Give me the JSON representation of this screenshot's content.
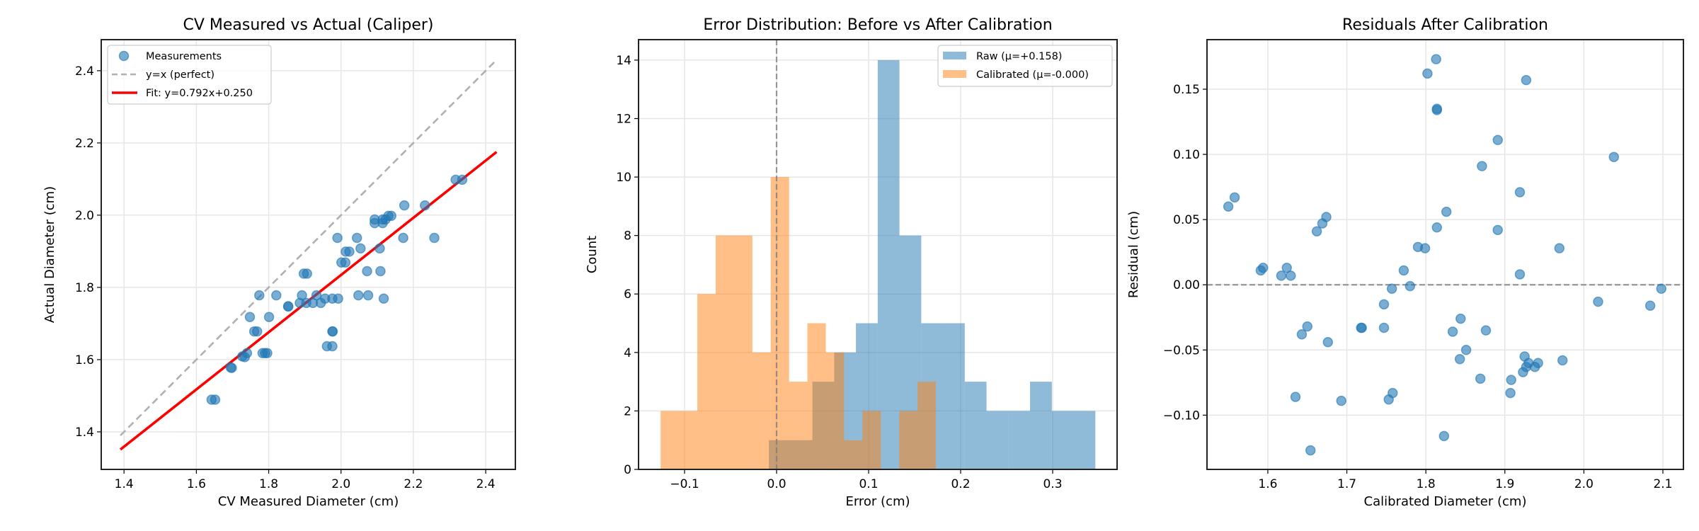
{
  "chart_data": [
    {
      "type": "scatter",
      "title": "CV Measured vs Actual (Caliper)",
      "xlabel": "CV Measured Diameter (cm)",
      "ylabel": "Actual Diameter (cm)",
      "xlim": [
        1.337,
        2.482
      ],
      "ylim": [
        1.296,
        2.486
      ],
      "grid": true,
      "legend_position": "top-left",
      "xticks": [
        1.4,
        1.6,
        1.8,
        2.0,
        2.2,
        2.4
      ],
      "xtick_labels": [
        "1.4",
        "1.6",
        "1.8",
        "2.0",
        "2.2",
        "2.4"
      ],
      "yticks": [
        1.4,
        1.6,
        1.8,
        2.0,
        2.2,
        2.4
      ],
      "ytick_labels": [
        "1.4",
        "1.6",
        "1.8",
        "2.0",
        "2.2",
        "2.4"
      ],
      "series": [
        {
          "name": "Measurements",
          "kind": "scatter",
          "color": "#1f77b4",
          "points": [
            [
              1.642,
              1.489
            ],
            [
              1.652,
              1.489
            ],
            [
              1.695,
              1.578
            ],
            [
              1.698,
              1.577
            ],
            [
              1.727,
              1.609
            ],
            [
              1.734,
              1.607
            ],
            [
              1.74,
              1.618
            ],
            [
              1.748,
              1.718
            ],
            [
              1.76,
              1.678
            ],
            [
              1.768,
              1.678
            ],
            [
              1.774,
              1.778
            ],
            [
              1.783,
              1.618
            ],
            [
              1.79,
              1.618
            ],
            [
              1.796,
              1.618
            ],
            [
              1.801,
              1.718
            ],
            [
              1.821,
              1.778
            ],
            [
              1.854,
              1.747
            ],
            [
              1.854,
              1.748
            ],
            [
              1.886,
              1.757
            ],
            [
              1.892,
              1.778
            ],
            [
              1.897,
              1.838
            ],
            [
              1.906,
              1.838
            ],
            [
              1.904,
              1.757
            ],
            [
              1.922,
              1.757
            ],
            [
              1.932,
              1.778
            ],
            [
              1.944,
              1.757
            ],
            [
              1.956,
              1.769
            ],
            [
              1.961,
              1.637
            ],
            [
              1.976,
              1.637
            ],
            [
              1.976,
              1.678
            ],
            [
              1.977,
              1.678
            ],
            [
              1.976,
              1.769
            ],
            [
              1.992,
              1.769
            ],
            [
              1.99,
              1.937
            ],
            [
              2.001,
              1.869
            ],
            [
              2.012,
              1.869
            ],
            [
              2.013,
              1.899
            ],
            [
              2.023,
              1.899
            ],
            [
              2.044,
              1.937
            ],
            [
              2.048,
              1.778
            ],
            [
              2.054,
              1.908
            ],
            [
              2.072,
              1.845
            ],
            [
              2.075,
              1.778
            ],
            [
              2.093,
              1.988
            ],
            [
              2.093,
              1.978
            ],
            [
              2.107,
              1.908
            ],
            [
              2.109,
              1.845
            ],
            [
              2.115,
              1.988
            ],
            [
              2.115,
              1.978
            ],
            [
              2.118,
              1.769
            ],
            [
              2.123,
              1.988
            ],
            [
              2.131,
              1.998
            ],
            [
              2.139,
              1.998
            ],
            [
              2.172,
              1.937
            ],
            [
              2.175,
              2.027
            ],
            [
              2.232,
              2.027
            ],
            [
              2.258,
              1.937
            ],
            [
              2.317,
              2.098
            ],
            [
              2.335,
              2.098
            ]
          ]
        },
        {
          "name": "y=x (perfect)",
          "kind": "line",
          "style": "dashed",
          "color": "#b0b0b0",
          "points": [
            [
              1.39,
              1.39
            ],
            [
              2.43,
              2.43
            ]
          ]
        },
        {
          "name": "Fit: y=0.792x+0.250",
          "kind": "line",
          "style": "solid",
          "color": "#ff0000",
          "slope": 0.792,
          "intercept": 0.25,
          "points": [
            [
              1.39,
              1.351
            ],
            [
              2.43,
              2.175
            ]
          ]
        }
      ]
    },
    {
      "type": "histogram",
      "title": "Error Distribution: Before vs After Calibration",
      "xlabel": "Error (cm)",
      "ylabel": "Count",
      "xlim": [
        -0.15,
        0.37
      ],
      "ylim": [
        0,
        14.7
      ],
      "grid": true,
      "legend_position": "top-right",
      "reference_line_x": 0,
      "xticks": [
        -0.1,
        0.0,
        0.1,
        0.2,
        0.3
      ],
      "xtick_labels": [
        "−0.1",
        "0.0",
        "0.1",
        "0.2",
        "0.3"
      ],
      "yticks": [
        0,
        2,
        4,
        6,
        8,
        10,
        12,
        14
      ],
      "ytick_labels": [
        "0",
        "2",
        "4",
        "6",
        "8",
        "10",
        "12",
        "14"
      ],
      "series": [
        {
          "name": "Raw (μ=+0.158)",
          "color": "#1f77b4",
          "bin_edges": [
            -0.0084,
            0.0153,
            0.0389,
            0.0626,
            0.0862,
            0.1099,
            0.1335,
            0.1572,
            0.1808,
            0.2045,
            0.2281,
            0.2518,
            0.2754,
            0.2991,
            0.3227,
            0.3464
          ],
          "counts": [
            1,
            1,
            3,
            4,
            5,
            14,
            8,
            5,
            5,
            3,
            2,
            2,
            3,
            2,
            2
          ]
        },
        {
          "name": "Calibrated (μ=-0.000)",
          "color": "#ff7f0e",
          "bin_edges": [
            -0.126,
            -0.1061,
            -0.0861,
            -0.0662,
            -0.0462,
            -0.0263,
            -0.0064,
            0.0136,
            0.0335,
            0.0535,
            0.0734,
            0.0933,
            0.1133,
            0.1332,
            0.1532,
            0.1731
          ],
          "counts": [
            2,
            2,
            6,
            8,
            8,
            4,
            10,
            3,
            5,
            4,
            1,
            2,
            0,
            2,
            3
          ]
        }
      ]
    },
    {
      "type": "scatter",
      "title": "Residuals After Calibration",
      "xlabel": "Calibrated Diameter (cm)",
      "ylabel": "Residual (cm)",
      "xlim": [
        1.523,
        2.126
      ],
      "ylim": [
        -0.1416,
        0.188
      ],
      "grid": true,
      "reference_line_y": 0,
      "xticks": [
        1.6,
        1.7,
        1.8,
        1.9,
        2.0,
        2.1
      ],
      "xtick_labels": [
        "1.6",
        "1.7",
        "1.8",
        "1.9",
        "2.0",
        "2.1"
      ],
      "yticks": [
        -0.1,
        -0.05,
        0.0,
        0.05,
        0.1,
        0.15
      ],
      "ytick_labels": [
        "−0.10",
        "−0.05",
        "0.00",
        "0.05",
        "0.10",
        "0.15"
      ],
      "series": [
        {
          "kind": "scatter",
          "color": "#1f77b4",
          "points": [
            [
              1.55,
              0.06
            ],
            [
              1.558,
              0.067
            ],
            [
              1.591,
              0.011
            ],
            [
              1.594,
              0.013
            ],
            [
              1.617,
              0.007
            ],
            [
              1.624,
              0.013
            ],
            [
              1.629,
              0.007
            ],
            [
              1.635,
              -0.086
            ],
            [
              1.643,
              -0.038
            ],
            [
              1.65,
              -0.032
            ],
            [
              1.654,
              -0.127
            ],
            [
              1.662,
              0.041
            ],
            [
              1.669,
              0.047
            ],
            [
              1.674,
              0.052
            ],
            [
              1.676,
              -0.044
            ],
            [
              1.693,
              -0.089
            ],
            [
              1.718,
              -0.033
            ],
            [
              1.719,
              -0.033
            ],
            [
              1.747,
              -0.015
            ],
            [
              1.747,
              -0.033
            ],
            [
              1.753,
              -0.088
            ],
            [
              1.757,
              -0.003
            ],
            [
              1.758,
              -0.083
            ],
            [
              1.772,
              0.011
            ],
            [
              1.78,
              -0.001
            ],
            [
              1.79,
              0.029
            ],
            [
              1.799,
              0.028
            ],
            [
              1.802,
              0.162
            ],
            [
              1.813,
              0.173
            ],
            [
              1.814,
              0.135
            ],
            [
              1.814,
              0.134
            ],
            [
              1.891,
              0.111
            ],
            [
              1.871,
              0.091
            ],
            [
              1.927,
              0.157
            ],
            [
              1.919,
              0.071
            ],
            [
              2.038,
              0.098
            ],
            [
              1.826,
              0.056
            ],
            [
              1.814,
              0.044
            ],
            [
              1.891,
              0.042
            ],
            [
              1.969,
              0.028
            ],
            [
              1.919,
              0.008
            ],
            [
              2.098,
              -0.003
            ],
            [
              2.018,
              -0.013
            ],
            [
              2.084,
              -0.016
            ],
            [
              1.844,
              -0.026
            ],
            [
              1.834,
              -0.036
            ],
            [
              1.876,
              -0.035
            ],
            [
              1.851,
              -0.05
            ],
            [
              1.843,
              -0.057
            ],
            [
              1.925,
              -0.055
            ],
            [
              1.973,
              -0.058
            ],
            [
              1.93,
              -0.06
            ],
            [
              1.942,
              -0.06
            ],
            [
              1.927,
              -0.063
            ],
            [
              1.938,
              -0.063
            ],
            [
              1.923,
              -0.067
            ],
            [
              1.869,
              -0.072
            ],
            [
              1.908,
              -0.073
            ],
            [
              1.907,
              -0.083
            ],
            [
              1.823,
              -0.116
            ]
          ]
        }
      ]
    }
  ]
}
